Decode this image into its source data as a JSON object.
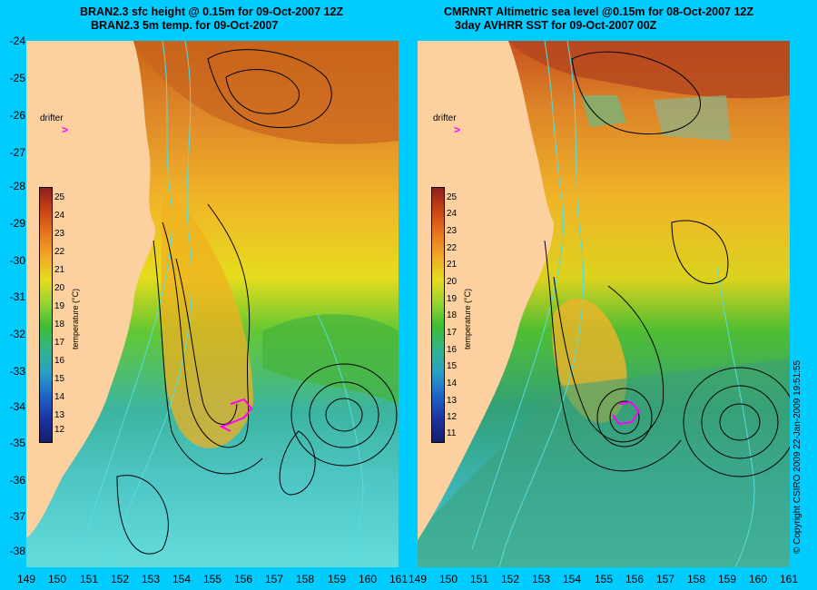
{
  "left_panel": {
    "title_line1": "BRAN2.3 sfc height @ 0.15m for 09-Oct-2007 12Z",
    "title_line2": "BRAN2.3 5m temp. for 09-Oct-2007",
    "drifter_label": "drifter",
    "colorbar": {
      "ticks": [
        "25",
        "24",
        "23",
        "22",
        "21",
        "20",
        "19",
        "18",
        "17",
        "16",
        "15",
        "14",
        "13",
        "12"
      ],
      "title": "temperature (°C)"
    }
  },
  "right_panel": {
    "title_line1": "CMRNRT Altimetric sea level  @0.15m  for 08-Oct-2007 12Z",
    "title_line2": "3day AVHRR SST for 09-Oct-2007 00Z",
    "drifter_label": "drifter",
    "colorbar": {
      "ticks": [
        "25",
        "24",
        "23",
        "22",
        "21",
        "20",
        "19",
        "18",
        "17",
        "16",
        "15",
        "14",
        "13",
        "12",
        "11"
      ],
      "title": "temperature (°C)"
    }
  },
  "y_axis_labels": [
    "-24",
    "-25",
    "-26",
    "-27",
    "-28",
    "-29",
    "-30",
    "-31",
    "-32",
    "-33",
    "-34",
    "-35",
    "-36",
    "-37",
    "-38"
  ],
  "x_axis_labels_left": [
    "149",
    "150",
    "151",
    "152",
    "153",
    "154",
    "155",
    "156",
    "157",
    "158",
    "159",
    "160",
    "161"
  ],
  "x_axis_labels_right": [
    "149",
    "150",
    "151",
    "152",
    "153",
    "154",
    "155",
    "156",
    "157",
    "158",
    "159",
    "160",
    "161"
  ],
  "copyright": "© Copyright CSIRO 2009    22-Jan-2009 19:51:55",
  "drifter_marker": ">",
  "colors": {
    "background": "#00ccff",
    "land": "#fdd0a0",
    "drifter": "#ff00ff",
    "contour_ssh": "#000000",
    "contour_bathy": "#55dddd"
  }
}
